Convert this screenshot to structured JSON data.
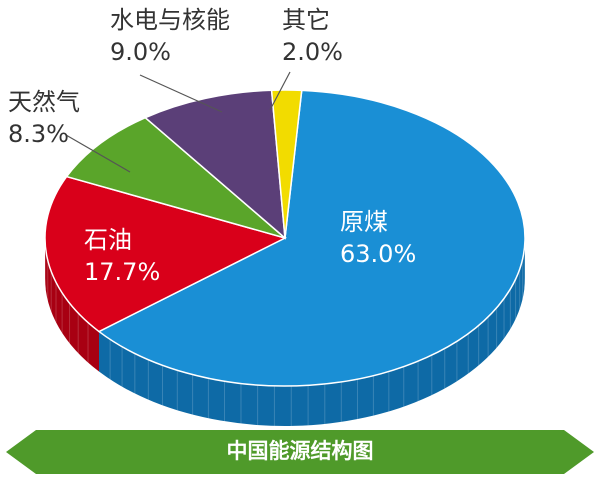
{
  "chart_data": {
    "type": "pie",
    "title": "中国能源结构图",
    "unit": "%",
    "slices": [
      {
        "name": "原煤",
        "value": 63.0,
        "label": "63.0%",
        "color": "#1a8fd5",
        "side": "#0e6aa6"
      },
      {
        "name": "石油",
        "value": 17.7,
        "label": "17.7%",
        "color": "#d9001a",
        "side": "#a80012"
      },
      {
        "name": "天然气",
        "value": 8.3,
        "label": "8.3%",
        "color": "#5aa52a",
        "side": "#3f7d1c"
      },
      {
        "name": "水电与核能",
        "value": 9.0,
        "label": "9.0%",
        "color": "#5b3f78",
        "side": "#42295b"
      },
      {
        "name": "其它",
        "value": 2.0,
        "label": "2.0%",
        "color": "#f2dc00",
        "side": "#c2af00"
      }
    ]
  },
  "colors": {
    "banner_fill": "#4f9a2a",
    "label_dark": "#333333",
    "label_light": "#ffffff"
  }
}
